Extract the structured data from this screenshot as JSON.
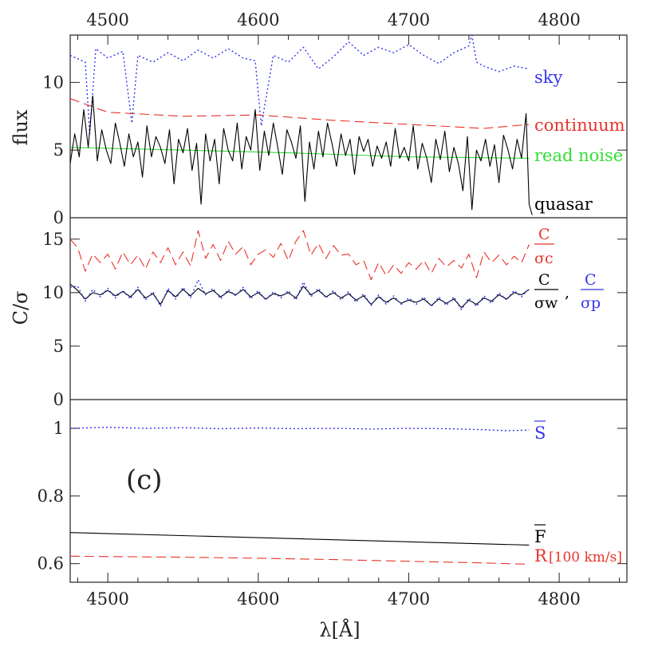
{
  "chart_data": {
    "type": "line",
    "x_range": [
      4475,
      4845
    ],
    "xlabel": "λ[Å]",
    "x_ticks": [
      4500,
      4600,
      4700,
      4800
    ],
    "colors": {
      "black": "#000000",
      "red": "#e8332a",
      "green": "#33dd33",
      "blue": "#3333ee"
    },
    "panels": [
      {
        "ylabel": "flux",
        "ylim": [
          0,
          13.5
        ],
        "y_ticks": [
          0,
          5,
          10
        ],
        "series": [
          {
            "name": "sky",
            "style": "dotted",
            "color": "#3333ee",
            "x": [
              4475,
              4485,
              4488,
              4492,
              4500,
              4510,
              4516,
              4520,
              4530,
              4540,
              4550,
              4560,
              4570,
              4580,
              4590,
              4598,
              4602,
              4610,
              4620,
              4630,
              4640,
              4650,
              4660,
              4670,
              4680,
              4690,
              4700,
              4710,
              4720,
              4730,
              4740,
              4742,
              4745,
              4750,
              4760,
              4770,
              4780
            ],
            "y": [
              12.0,
              11.5,
              6.2,
              12.5,
              11.8,
              12.3,
              7.0,
              12.0,
              11.5,
              12.2,
              11.6,
              12.4,
              11.8,
              12.5,
              11.8,
              11.6,
              6.8,
              12.0,
              11.5,
              12.6,
              11.0,
              11.9,
              13.0,
              12.0,
              12.6,
              12.2,
              12.8,
              12.0,
              11.4,
              12.2,
              12.7,
              14.0,
              11.5,
              11.2,
              10.8,
              11.2,
              11.0
            ]
          },
          {
            "name": "continuum",
            "style": "dashed",
            "color": "#e8332a",
            "x": [
              4475,
              4500,
              4550,
              4600,
              4650,
              4700,
              4750,
              4780
            ],
            "y": [
              8.8,
              7.8,
              7.5,
              7.6,
              7.2,
              6.9,
              6.6,
              6.9
            ]
          },
          {
            "name": "read noise",
            "style": "solid",
            "color": "#33dd33",
            "x": [
              4475,
              4550,
              4620,
              4700,
              4780
            ],
            "y": [
              5.2,
              5.0,
              4.8,
              4.5,
              4.4
            ]
          },
          {
            "name": "quasar",
            "style": "solid",
            "color": "#000000",
            "x": [
              4475,
              4478,
              4481,
              4484,
              4487,
              4490,
              4493,
              4496,
              4499,
              4502,
              4505,
              4508,
              4511,
              4514,
              4517,
              4520,
              4523,
              4526,
              4529,
              4532,
              4535,
              4538,
              4541,
              4544,
              4547,
              4550,
              4553,
              4556,
              4559,
              4562,
              4565,
              4568,
              4571,
              4574,
              4577,
              4580,
              4583,
              4586,
              4589,
              4592,
              4595,
              4598,
              4601,
              4604,
              4607,
              4610,
              4613,
              4616,
              4619,
              4622,
              4625,
              4628,
              4631,
              4634,
              4637,
              4640,
              4643,
              4646,
              4649,
              4652,
              4655,
              4658,
              4661,
              4664,
              4667,
              4670,
              4673,
              4676,
              4679,
              4682,
              4685,
              4688,
              4691,
              4694,
              4697,
              4700,
              4703,
              4706,
              4709,
              4712,
              4715,
              4718,
              4721,
              4724,
              4727,
              4730,
              4733,
              4736,
              4739,
              4742,
              4745,
              4748,
              4751,
              4754,
              4757,
              4760,
              4763,
              4766,
              4769,
              4772,
              4775,
              4778,
              4780,
              4782
            ],
            "y": [
              4.0,
              6.2,
              4.5,
              8.0,
              5.2,
              9.0,
              4.2,
              6.5,
              5.0,
              4.0,
              7.0,
              5.5,
              3.8,
              6.2,
              4.5,
              5.6,
              3.0,
              6.8,
              4.5,
              6.0,
              5.2,
              4.0,
              6.5,
              2.5,
              5.8,
              4.8,
              6.6,
              3.5,
              5.5,
              1.0,
              6.2,
              4.2,
              5.8,
              2.5,
              6.6,
              5.0,
              4.2,
              7.0,
              3.6,
              6.0,
              5.0,
              8.0,
              3.5,
              6.4,
              4.6,
              7.0,
              5.2,
              3.2,
              6.5,
              5.6,
              4.4,
              6.8,
              1.2,
              5.6,
              3.6,
              6.4,
              4.5,
              7.0,
              5.5,
              3.8,
              6.2,
              4.6,
              5.8,
              3.2,
              6.0,
              4.9,
              5.8,
              3.8,
              5.3,
              4.4,
              5.6,
              3.8,
              6.6,
              4.4,
              5.2,
              4.2,
              6.8,
              3.6,
              5.5,
              4.4,
              2.6,
              5.8,
              4.3,
              6.4,
              3.4,
              5.2,
              4.0,
              2.0,
              6.0,
              0.6,
              5.0,
              4.2,
              5.8,
              3.8,
              5.4,
              2.6,
              6.1,
              5.0,
              3.6,
              5.8,
              4.4,
              7.7,
              1.0,
              0.2
            ]
          }
        ]
      },
      {
        "ylabel": "C/σ",
        "ylim": [
          0,
          17
        ],
        "y_ticks": [
          0,
          5,
          10,
          15
        ],
        "series": [
          {
            "name": "C/σc",
            "style": "dashed",
            "color": "#e8332a",
            "x": [
              4475,
              4480,
              4485,
              4490,
              4495,
              4500,
              4505,
              4510,
              4515,
              4520,
              4525,
              4530,
              4535,
              4540,
              4545,
              4550,
              4555,
              4560,
              4565,
              4570,
              4575,
              4580,
              4585,
              4590,
              4595,
              4600,
              4605,
              4610,
              4615,
              4620,
              4625,
              4630,
              4635,
              4640,
              4645,
              4650,
              4655,
              4660,
              4665,
              4670,
              4675,
              4680,
              4685,
              4690,
              4695,
              4700,
              4705,
              4710,
              4715,
              4720,
              4725,
              4730,
              4735,
              4740,
              4745,
              4750,
              4755,
              4760,
              4765,
              4770,
              4775,
              4780
            ],
            "y": [
              15.0,
              14.2,
              12.0,
              13.6,
              12.8,
              13.6,
              12.2,
              13.8,
              12.6,
              13.5,
              12.2,
              13.8,
              12.8,
              14.2,
              12.6,
              13.8,
              12.5,
              15.8,
              13.2,
              14.5,
              13.0,
              14.8,
              13.6,
              14.3,
              12.6,
              13.6,
              14.0,
              13.3,
              14.6,
              13.0,
              14.8,
              15.8,
              13.5,
              14.6,
              13.2,
              14.4,
              13.5,
              13.6,
              12.6,
              13.0,
              11.2,
              12.8,
              11.6,
              12.6,
              11.8,
              12.8,
              12.2,
              13.0,
              11.8,
              13.2,
              12.4,
              13.0,
              12.3,
              13.6,
              11.4,
              13.8,
              12.8,
              13.5,
              12.6,
              13.4,
              12.8,
              14.5
            ]
          },
          {
            "name": "C/σw",
            "style": "solid",
            "color": "#000000",
            "x": [
              4475,
              4480,
              4485,
              4490,
              4495,
              4500,
              4505,
              4510,
              4515,
              4520,
              4525,
              4530,
              4535,
              4540,
              4545,
              4550,
              4555,
              4560,
              4565,
              4570,
              4575,
              4580,
              4585,
              4590,
              4595,
              4600,
              4605,
              4610,
              4615,
              4620,
              4625,
              4630,
              4635,
              4640,
              4645,
              4650,
              4655,
              4660,
              4665,
              4670,
              4675,
              4680,
              4685,
              4690,
              4695,
              4700,
              4705,
              4710,
              4715,
              4720,
              4725,
              4730,
              4735,
              4740,
              4745,
              4750,
              4755,
              4760,
              4765,
              4770,
              4775,
              4780
            ],
            "y": [
              10.8,
              10.2,
              9.4,
              10.0,
              9.8,
              10.2,
              9.7,
              10.1,
              9.6,
              10.3,
              9.5,
              9.9,
              8.9,
              10.2,
              9.6,
              10.3,
              9.7,
              10.4,
              9.9,
              10.2,
              9.6,
              10.1,
              9.8,
              10.3,
              9.6,
              10.0,
              9.4,
              9.9,
              9.7,
              10.0,
              9.5,
              10.6,
              9.8,
              10.2,
              9.6,
              10.0,
              9.5,
              9.9,
              9.3,
              9.7,
              8.9,
              9.6,
              9.1,
              9.5,
              9.0,
              9.3,
              9.1,
              9.4,
              8.8,
              9.4,
              9.0,
              9.4,
              8.6,
              9.3,
              8.9,
              9.5,
              9.2,
              9.8,
              9.4,
              10.0,
              9.8,
              10.3
            ]
          },
          {
            "name": "C/σp",
            "style": "dotted",
            "color": "#3333ee",
            "x": [
              4475,
              4480,
              4485,
              4490,
              4495,
              4500,
              4505,
              4510,
              4515,
              4520,
              4525,
              4530,
              4535,
              4540,
              4545,
              4550,
              4555,
              4560,
              4565,
              4570,
              4575,
              4580,
              4585,
              4590,
              4595,
              4600,
              4605,
              4610,
              4615,
              4620,
              4625,
              4630,
              4635,
              4640,
              4645,
              4650,
              4655,
              4660,
              4665,
              4670,
              4675,
              4680,
              4685,
              4690,
              4695,
              4700,
              4705,
              4710,
              4715,
              4720,
              4725,
              4730,
              4735,
              4740,
              4745,
              4750,
              4755,
              4760,
              4765,
              4770,
              4775,
              4780
            ],
            "y": [
              10.5,
              10.6,
              9.2,
              10.3,
              9.6,
              10.4,
              9.5,
              10.2,
              9.4,
              10.5,
              9.3,
              10.1,
              8.7,
              10.4,
              9.4,
              10.5,
              9.5,
              11.2,
              9.8,
              10.4,
              9.4,
              10.3,
              9.7,
              10.5,
              9.4,
              10.2,
              9.3,
              10.1,
              9.5,
              10.2,
              9.3,
              11.0,
              9.6,
              10.4,
              9.5,
              10.2,
              9.3,
              10.1,
              9.1,
              9.9,
              8.8,
              9.8,
              8.9,
              9.7,
              8.9,
              9.5,
              8.9,
              9.6,
              8.7,
              9.6,
              8.8,
              9.6,
              8.4,
              9.5,
              8.7,
              9.7,
              9.0,
              10.0,
              9.3,
              10.2,
              9.6,
              10.4
            ]
          }
        ]
      },
      {
        "ylabel": "",
        "ylim": [
          0.545,
          1.085
        ],
        "y_ticks": [
          0.6,
          0.8,
          1
        ],
        "panel_tag": "(c)",
        "series": [
          {
            "name": "S̄",
            "style": "dotted",
            "color": "#3333ee",
            "x": [
              4475,
              4500,
              4525,
              4550,
              4575,
              4600,
              4625,
              4650,
              4675,
              4700,
              4725,
              4750,
              4765,
              4780
            ],
            "y": [
              1.0,
              1.003,
              1.0,
              1.002,
              0.999,
              1.001,
              0.999,
              1.0,
              0.998,
              1.0,
              0.999,
              0.996,
              0.993,
              0.995
            ]
          },
          {
            "name": "F̄",
            "style": "solid",
            "color": "#000000",
            "x": [
              4475,
              4780
            ],
            "y": [
              0.692,
              0.655
            ]
          },
          {
            "name": "R [100 km/s]",
            "style": "dashed",
            "color": "#e8332a",
            "x": [
              4475,
              4500,
              4550,
              4600,
              4650,
              4700,
              4750,
              4780
            ],
            "y": [
              0.622,
              0.621,
              0.619,
              0.616,
              0.612,
              0.607,
              0.602,
              0.598
            ]
          }
        ]
      }
    ],
    "labels": {
      "sky": "sky",
      "continuum": "continuum",
      "read_noise": "read noise",
      "quasar": "quasar",
      "c_sigma_letter": "C",
      "sigma_c": "σc",
      "sigma_w": "σw",
      "sigma_p": "σp",
      "comma": ",",
      "s_bar": "S",
      "f_bar": "F",
      "r_label": "R",
      "r_unit": "[100 km/s]"
    }
  }
}
